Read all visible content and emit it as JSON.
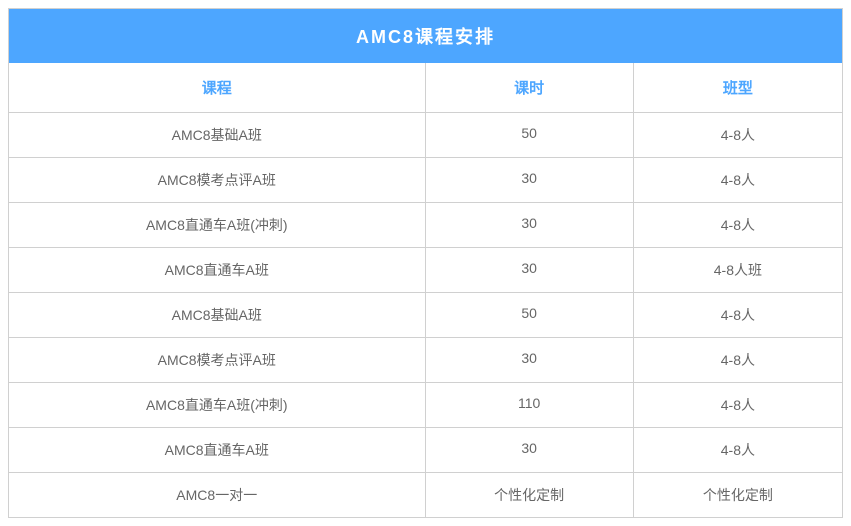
{
  "table": {
    "title": "AMC8课程安排",
    "title_bg": "#4da6ff",
    "title_color": "#ffffff",
    "header_color": "#4da6ff",
    "cell_color": "#666666",
    "border_color": "#d0d0d0",
    "columns": [
      {
        "label": "课程",
        "key": "course"
      },
      {
        "label": "课时",
        "key": "hours"
      },
      {
        "label": "班型",
        "key": "class"
      }
    ],
    "rows": [
      {
        "course": "AMC8基础A班",
        "hours": "50",
        "class": "4-8人"
      },
      {
        "course": "AMC8模考点评A班",
        "hours": "30",
        "class": "4-8人"
      },
      {
        "course": "AMC8直通车A班(冲刺)",
        "hours": "30",
        "class": "4-8人"
      },
      {
        "course": "AMC8直通车A班",
        "hours": "30",
        "class": "4-8人班"
      },
      {
        "course": "AMC8基础A班",
        "hours": "50",
        "class": "4-8人"
      },
      {
        "course": "AMC8模考点评A班",
        "hours": "30",
        "class": "4-8人"
      },
      {
        "course": "AMC8直通车A班(冲刺)",
        "hours": "110",
        "class": "4-8人"
      },
      {
        "course": "AMC8直通车A班",
        "hours": "30",
        "class": "4-8人"
      },
      {
        "course": "AMC8一对一",
        "hours": "个性化定制",
        "class": "个性化定制"
      }
    ]
  }
}
